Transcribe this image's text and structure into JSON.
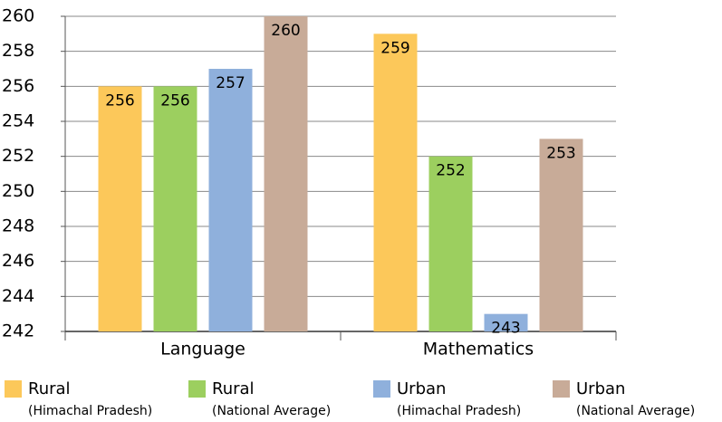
{
  "chart_data": {
    "type": "bar",
    "categories": [
      "Language",
      "Mathematics"
    ],
    "series": [
      {
        "name": "Rural",
        "detail": "(Himachal Pradesh)",
        "color": "#fcc85a",
        "values": [
          256,
          259
        ]
      },
      {
        "name": "Rural",
        "detail": "(National Average)",
        "color": "#9ccf5f",
        "values": [
          256,
          252
        ]
      },
      {
        "name": "Urban",
        "detail": "(Himachal Pradesh)",
        "color": "#8fb0dc",
        "values": [
          257,
          243
        ]
      },
      {
        "name": "Urban",
        "detail": "(National Average)",
        "color": "#c8ab98",
        "values": [
          260,
          253
        ]
      }
    ],
    "ylim": [
      242,
      260
    ],
    "yticks": [
      242,
      244,
      246,
      248,
      250,
      252,
      254,
      256,
      258,
      260
    ],
    "grid": true,
    "legend": "bottom"
  }
}
